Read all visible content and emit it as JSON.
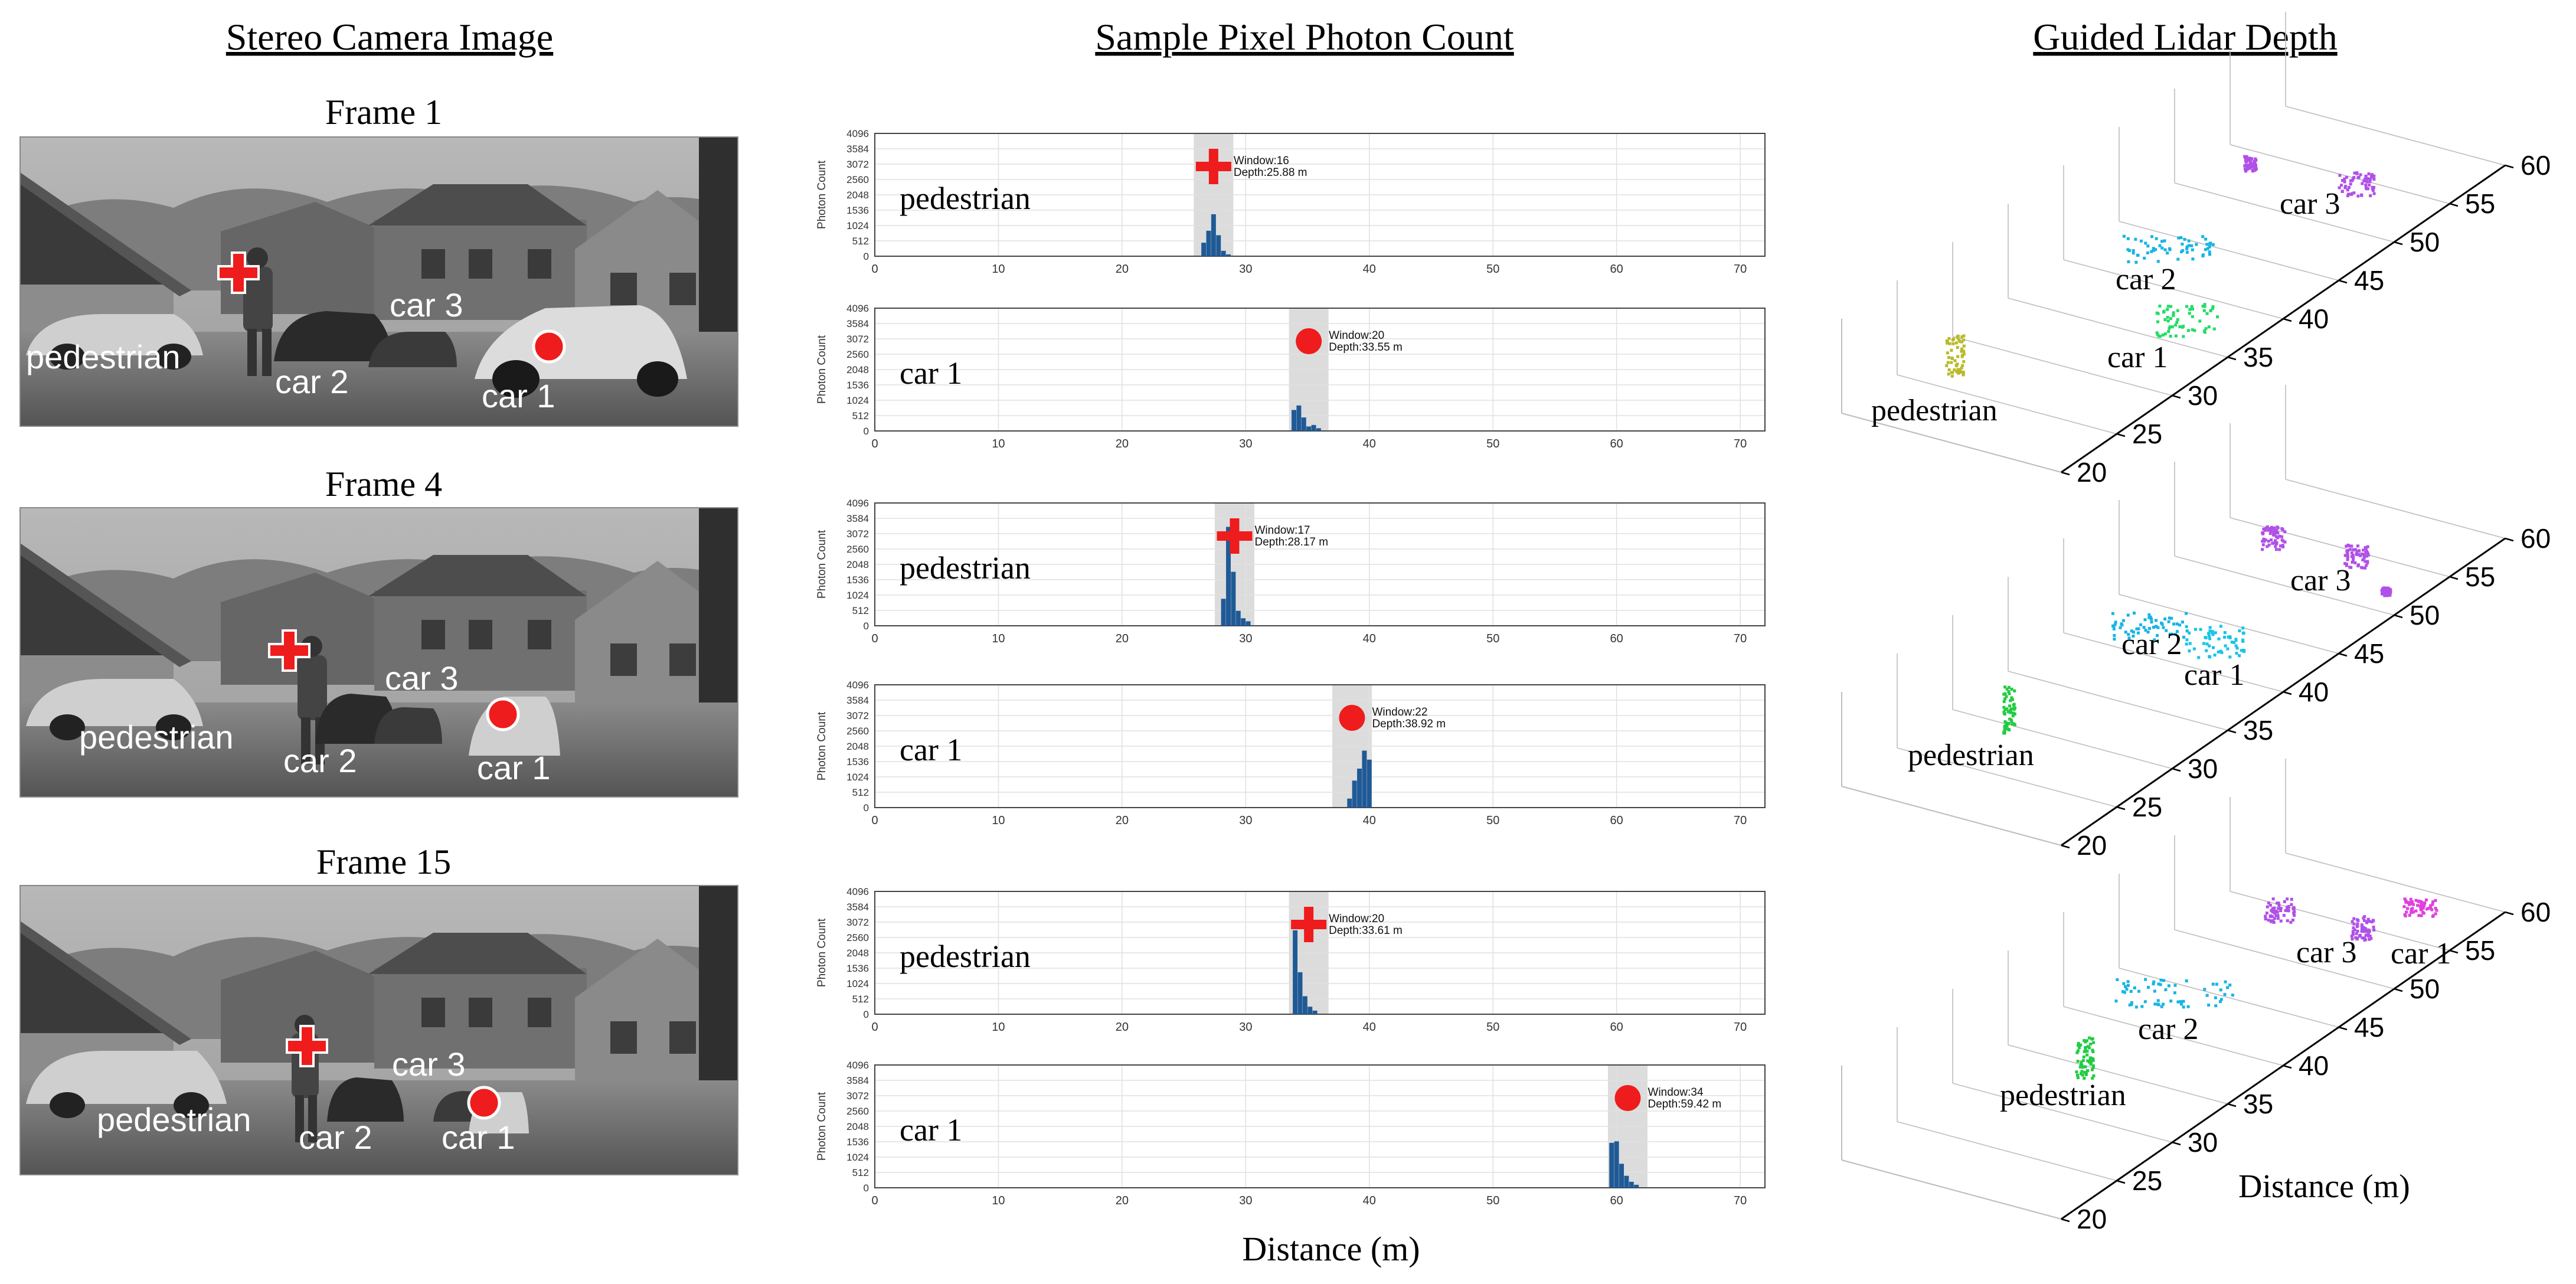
{
  "headers": {
    "camera": "Stereo Camera Image",
    "histogram": "Sample Pixel Photon Count",
    "lidar": "Guided Lidar Depth"
  },
  "frames": [
    {
      "title": "Frame 1",
      "photo_labels": {
        "pedestrian": "pedestrian",
        "car1": "car 1",
        "car2": "car 2",
        "car3": "car 3"
      },
      "lidar_labels": {
        "pedestrian": "pedestrian",
        "car1": "car 1",
        "car2": "car 2",
        "car3": "car 3"
      }
    },
    {
      "title": "Frame 4",
      "photo_labels": {
        "pedestrian": "pedestrian",
        "car1": "car 1",
        "car2": "car 2",
        "car3": "car 3"
      },
      "lidar_labels": {
        "pedestrian": "pedestrian",
        "car1": "car 1",
        "car2": "car 2",
        "car3": "car 3"
      }
    },
    {
      "title": "Frame 15",
      "photo_labels": {
        "pedestrian": "pedestrian",
        "car1": "car 1",
        "car2": "car 2",
        "car3": "car 3"
      },
      "lidar_labels": {
        "pedestrian": "pedestrian",
        "car1": "car 1",
        "car2": "car 2",
        "car3": "car 3"
      }
    }
  ],
  "lidar_axis": {
    "ticks": [
      "20",
      "25",
      "30",
      "35",
      "40",
      "45",
      "50",
      "55",
      "60"
    ],
    "label": "Distance (m)"
  },
  "xlabel": "Distance (m)",
  "colors": {
    "bar": "#1f5a96",
    "window": "#dcdcdc",
    "marker": "#ee1c1c",
    "pedestrian_frame1": "#b8ba2a",
    "pedestrian": "#22cc44",
    "car2": "#18b4e4",
    "car3": "#b050e8",
    "car1_frame1": "#22dd66",
    "car1_frame4": "#19c4e6",
    "car1_frame15": "#e040e0"
  },
  "chart_data": [
    {
      "type": "bar",
      "panel": "Frame 1 pedestrian",
      "row_label": "pedestrian",
      "marker": "cross",
      "annotation_window": "Window:16",
      "annotation_depth": "Depth:25.88 m",
      "ylabel": "Photon Count",
      "yticks": [
        0,
        512,
        1024,
        1536,
        2048,
        2560,
        3072,
        3584,
        4096
      ],
      "xticks": [
        0,
        10,
        20,
        30,
        40,
        50,
        60,
        70
      ],
      "xlim": [
        0,
        72
      ],
      "ylim": [
        0,
        4096
      ],
      "window": [
        25.8,
        29.0
      ],
      "x": [
        26.6,
        27.0,
        27.4,
        27.8,
        28.2,
        28.6
      ],
      "values": [
        450,
        850,
        1400,
        700,
        180,
        60
      ]
    },
    {
      "type": "bar",
      "panel": "Frame 1 car 1",
      "row_label": "car 1",
      "marker": "circle",
      "annotation_window": "Window:20",
      "annotation_depth": "Depth:33.55 m",
      "ylabel": "Photon Count",
      "yticks": [
        0,
        512,
        1024,
        1536,
        2048,
        2560,
        3072,
        3584,
        4096
      ],
      "xticks": [
        0,
        10,
        20,
        30,
        40,
        50,
        60,
        70
      ],
      "xlim": [
        0,
        72
      ],
      "ylim": [
        0,
        4096
      ],
      "window": [
        33.5,
        36.7
      ],
      "x": [
        33.9,
        34.3,
        34.7,
        35.1,
        35.5,
        35.9
      ],
      "values": [
        700,
        850,
        450,
        150,
        200,
        90
      ]
    },
    {
      "type": "bar",
      "panel": "Frame 4 pedestrian",
      "row_label": "pedestrian",
      "marker": "cross",
      "annotation_window": "Window:17",
      "annotation_depth": "Depth:28.17 m",
      "ylabel": "Photon Count",
      "yticks": [
        0,
        512,
        1024,
        1536,
        2048,
        2560,
        3072,
        3584,
        4096
      ],
      "xticks": [
        0,
        10,
        20,
        30,
        40,
        50,
        60,
        70
      ],
      "xlim": [
        0,
        72
      ],
      "ylim": [
        0,
        4096
      ],
      "window": [
        27.5,
        30.7
      ],
      "x": [
        28.2,
        28.6,
        29.0,
        29.4,
        29.8,
        30.2
      ],
      "values": [
        900,
        3300,
        1800,
        500,
        250,
        150
      ]
    },
    {
      "type": "bar",
      "panel": "Frame 4 car 1",
      "row_label": "car 1",
      "marker": "circle",
      "annotation_window": "Window:22",
      "annotation_depth": "Depth:38.92 m",
      "ylabel": "Photon Count",
      "yticks": [
        0,
        512,
        1024,
        1536,
        2048,
        2560,
        3072,
        3584,
        4096
      ],
      "xticks": [
        0,
        10,
        20,
        30,
        40,
        50,
        60,
        70
      ],
      "xlim": [
        0,
        72
      ],
      "ylim": [
        0,
        4096
      ],
      "window": [
        37.0,
        40.2
      ],
      "x": [
        38.4,
        38.8,
        39.2,
        39.6,
        40.0
      ],
      "values": [
        300,
        900,
        1300,
        1900,
        1600
      ]
    },
    {
      "type": "bar",
      "panel": "Frame 15 pedestrian",
      "row_label": "pedestrian",
      "marker": "cross",
      "annotation_window": "Window:20",
      "annotation_depth": "Depth:33.61 m",
      "ylabel": "Photon Count",
      "yticks": [
        0,
        512,
        1024,
        1536,
        2048,
        2560,
        3072,
        3584,
        4096
      ],
      "xticks": [
        0,
        10,
        20,
        30,
        40,
        50,
        60,
        70
      ],
      "xlim": [
        0,
        72
      ],
      "ylim": [
        0,
        4096
      ],
      "window": [
        33.5,
        36.7
      ],
      "x": [
        34.0,
        34.4,
        34.8,
        35.2,
        35.6
      ],
      "values": [
        2800,
        1400,
        600,
        250,
        120
      ]
    },
    {
      "type": "bar",
      "panel": "Frame 15 car 1",
      "row_label": "car 1",
      "marker": "circle",
      "annotation_window": "Window:34",
      "annotation_depth": "Depth:59.42 m",
      "ylabel": "Photon Count",
      "yticks": [
        0,
        512,
        1024,
        1536,
        2048,
        2560,
        3072,
        3584,
        4096
      ],
      "xticks": [
        0,
        10,
        20,
        30,
        40,
        50,
        60,
        70
      ],
      "xlim": [
        0,
        72
      ],
      "ylim": [
        0,
        4096
      ],
      "window": [
        59.3,
        62.5
      ],
      "x": [
        59.6,
        60.0,
        60.4,
        60.8,
        61.2,
        61.6
      ],
      "values": [
        1500,
        1550,
        800,
        400,
        200,
        100
      ]
    }
  ]
}
